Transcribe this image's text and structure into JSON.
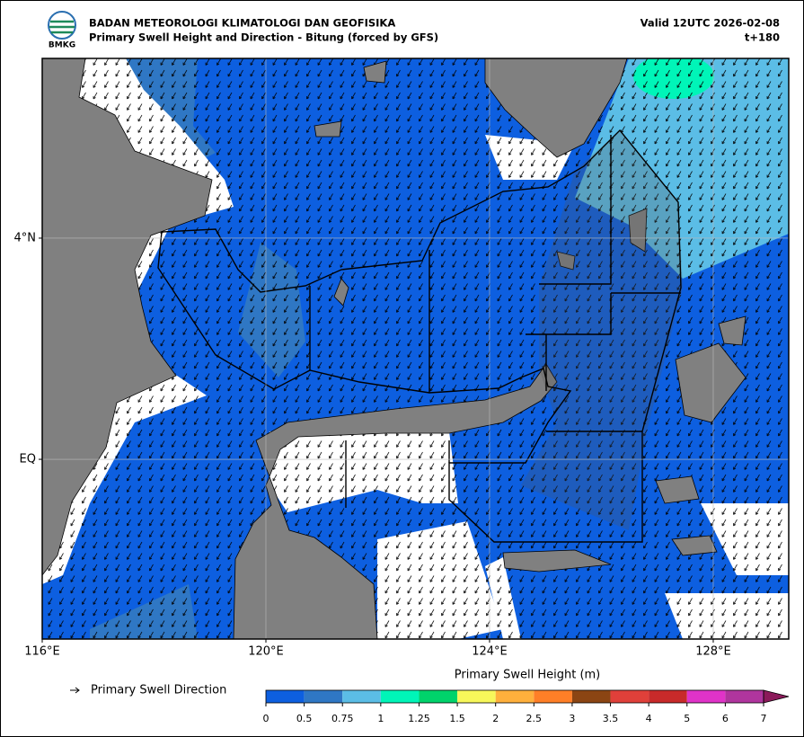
{
  "header": {
    "logo_text": "BMKG",
    "title": "BADAN METEOROLOGI KLIMATOLOGI DAN GEOFISIKA",
    "subtitle": "Primary Swell Height and Direction - Bitung (forced by GFS)",
    "valid": "Valid 12UTC 2026-02-08",
    "lead": "t+180"
  },
  "map": {
    "xlim": [
      116,
      129.35
    ],
    "ylim": [
      -3.25,
      7.25
    ],
    "xticks": [
      {
        "value": 116,
        "label": "116°E"
      },
      {
        "value": 120,
        "label": "120°E"
      },
      {
        "value": 124,
        "label": "124°E"
      },
      {
        "value": 128,
        "label": "128°E"
      }
    ],
    "yticks": [
      {
        "value": 4,
        "label": "4°N"
      },
      {
        "value": 0,
        "label": "EQ"
      }
    ],
    "grid": true
  },
  "legend": {
    "direction_label": "Primary Swell Direction"
  },
  "colorbar": {
    "title": "Primary Swell Height (m)",
    "ticks": [
      0,
      0.5,
      0.75,
      1,
      1.25,
      1.5,
      2,
      2.5,
      3,
      3.5,
      4,
      5,
      6,
      7
    ],
    "colors": [
      "#0d5fe0",
      "#2f77c4",
      "#5bbde6",
      "#00f5b8",
      "#00d36b",
      "#f7f75a",
      "#ffb03c",
      "#ff7f27",
      "#8b4513",
      "#e0403a",
      "#c82a2a",
      "#e033c8",
      "#b0359e"
    ],
    "extend_color": "#8b1a5a"
  }
}
